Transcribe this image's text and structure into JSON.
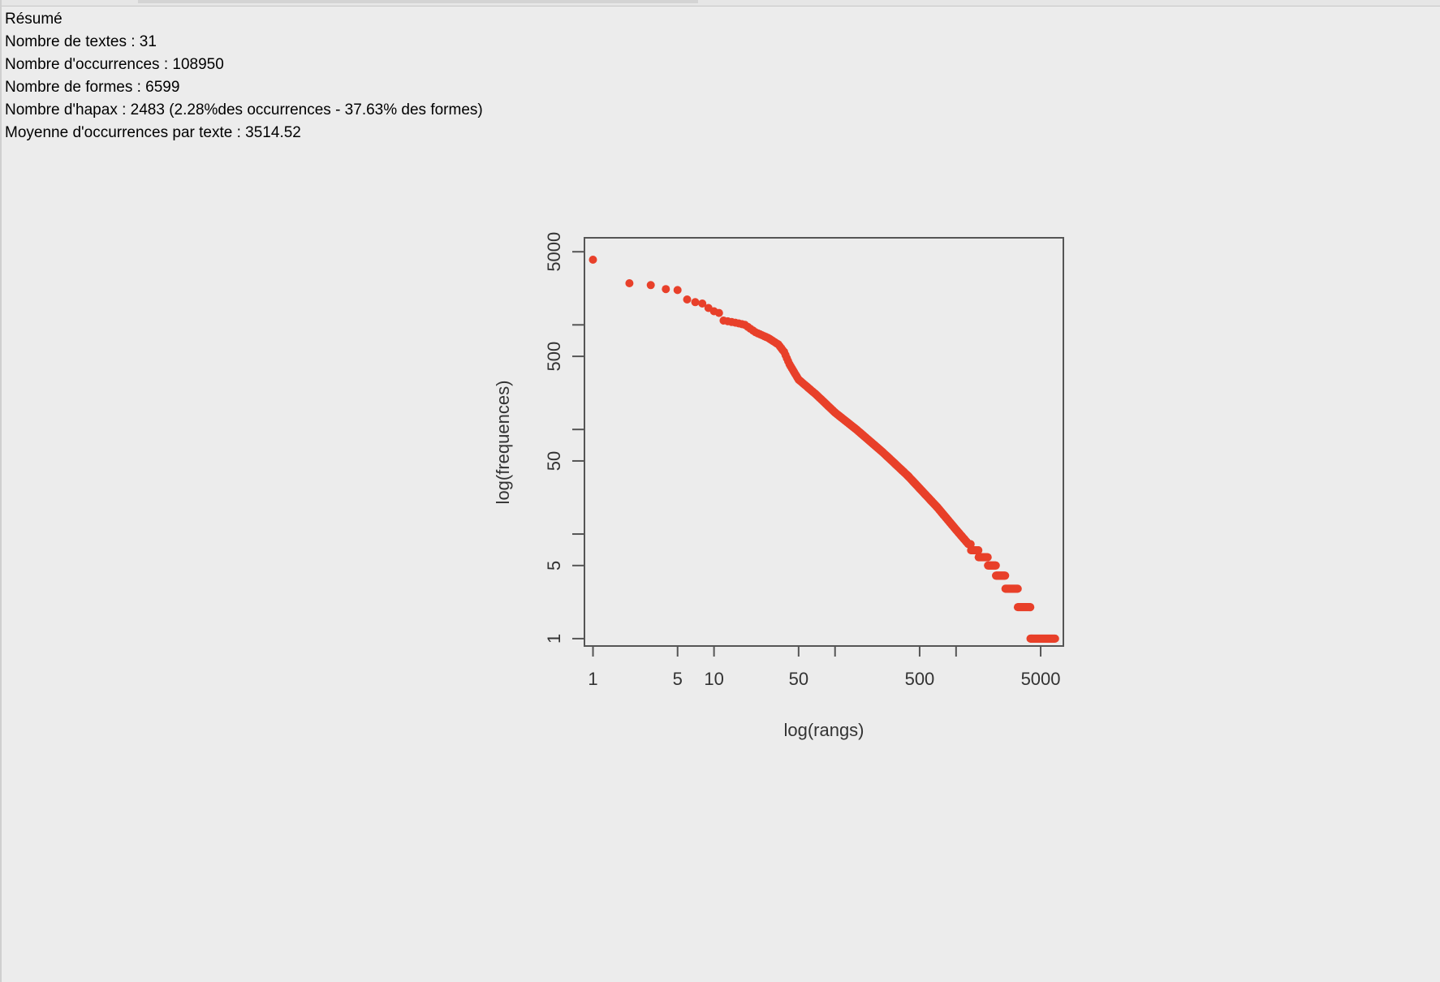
{
  "summary": {
    "title": "Résumé",
    "lines": [
      "Nombre de textes : 31",
      "Nombre d'occurrences : 108950",
      "Nombre de formes : 6599",
      "Nombre d'hapax : 2483 (2.28%des occurrences - 37.63% des formes)",
      "Moyenne d'occurrences par texte : 3514.52"
    ]
  },
  "chart_data": {
    "type": "scatter",
    "xlabel": "log(rangs)",
    "ylabel": "log(frequences)",
    "x_scale": "log",
    "y_scale": "log",
    "xlim": [
      0.85,
      7700
    ],
    "ylim": [
      0.85,
      6800
    ],
    "x_ticks": [
      1,
      5,
      10,
      50,
      100,
      500,
      1000,
      5000
    ],
    "x_tick_labels": [
      "1",
      "5",
      "10",
      "50",
      "",
      "500",
      "",
      "5000"
    ],
    "y_ticks": [
      1,
      5,
      10,
      50,
      100,
      500,
      1000,
      5000
    ],
    "y_tick_labels": [
      "1",
      "5",
      "",
      "50",
      "",
      "500",
      "",
      "5000"
    ],
    "point_color": "#e8402a",
    "grid": false,
    "legend": "none",
    "curve": {
      "description": "rank-frequency (Zipf) curve, one point per rank",
      "rank_min": 1,
      "rank_max": 6599,
      "anchors": [
        [
          1,
          4200
        ],
        [
          2,
          2500
        ],
        [
          3,
          2400
        ],
        [
          4,
          2200
        ],
        [
          5,
          2150
        ],
        [
          6,
          1750
        ],
        [
          7,
          1650
        ],
        [
          8,
          1600
        ],
        [
          9,
          1450
        ],
        [
          10,
          1350
        ],
        [
          11,
          1300
        ],
        [
          12,
          1100
        ],
        [
          15,
          1050
        ],
        [
          18,
          1000
        ],
        [
          22,
          850
        ],
        [
          28,
          750
        ],
        [
          34,
          650
        ],
        [
          38,
          550
        ],
        [
          42,
          420
        ],
        [
          50,
          300
        ],
        [
          70,
          215
        ],
        [
          100,
          145
        ],
        [
          150,
          100
        ],
        [
          250,
          60
        ],
        [
          400,
          36
        ],
        [
          700,
          18
        ],
        [
          1000,
          11
        ],
        [
          1400,
          7
        ],
        [
          1700,
          6
        ],
        [
          2000,
          5
        ],
        [
          2300,
          4
        ],
        [
          2900,
          3
        ],
        [
          3700,
          2
        ],
        [
          4116,
          2
        ],
        [
          4117,
          1
        ],
        [
          6599,
          1
        ]
      ]
    }
  }
}
